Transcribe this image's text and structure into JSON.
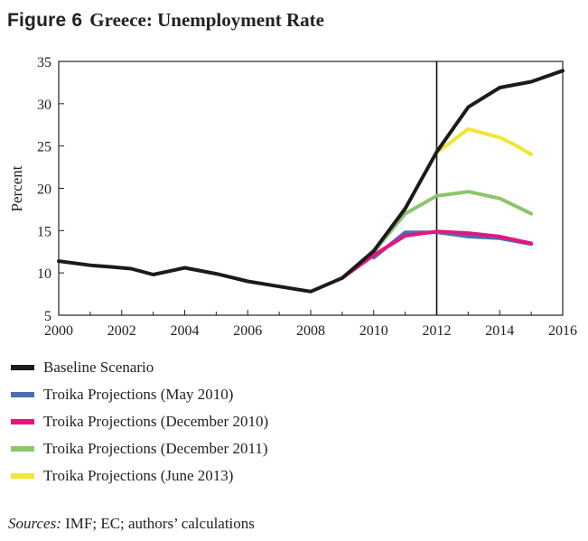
{
  "figure": {
    "label": "Figure 6",
    "title": "Greece: Unemployment Rate"
  },
  "chart_data": {
    "type": "line",
    "title": "Greece: Unemployment Rate",
    "xlabel": "",
    "ylabel": "Percent",
    "xlim": [
      2000,
      2016
    ],
    "ylim": [
      5,
      35
    ],
    "xticks": [
      2000,
      2002,
      2004,
      2006,
      2008,
      2010,
      2012,
      2014,
      2016
    ],
    "yticks": [
      5,
      10,
      15,
      20,
      25,
      30,
      35
    ],
    "vline": 2012,
    "series": [
      {
        "name": "Troika Projections (May 2010)",
        "color": "#4a6fb5",
        "x": [
          2010,
          2011,
          2012,
          2013,
          2014,
          2015
        ],
        "values": [
          11.8,
          14.8,
          14.8,
          14.3,
          14.1,
          13.4
        ]
      },
      {
        "name": "Troika Projections (June 2013)",
        "color": "#f2e534",
        "x": [
          2012,
          2013,
          2014,
          2014.5,
          2015
        ],
        "values": [
          24.2,
          27.0,
          26.0,
          25.1,
          24.0
        ]
      },
      {
        "name": "Troika Projections (December 2011)",
        "color": "#8bc66a",
        "x": [
          2010,
          2011,
          2012,
          2013,
          2014,
          2015
        ],
        "values": [
          12.5,
          17.0,
          19.1,
          19.6,
          18.8,
          17.0
        ]
      },
      {
        "name": "Troika Projections (December 2010)",
        "color": "#e6157e",
        "x": [
          2009,
          2010,
          2011,
          2012,
          2013,
          2014,
          2015
        ],
        "values": [
          9.4,
          12.1,
          14.4,
          14.9,
          14.7,
          14.3,
          13.5
        ]
      },
      {
        "name": "Baseline Scenario",
        "color": "#1b1b1b",
        "x": [
          2000,
          2001,
          2001.7,
          2002.3,
          2003,
          2003.5,
          2004,
          2005,
          2006,
          2007,
          2008,
          2009,
          2010,
          2011,
          2012,
          2013,
          2014,
          2015,
          2016
        ],
        "values": [
          11.4,
          10.9,
          10.7,
          10.5,
          9.8,
          10.2,
          10.6,
          9.9,
          9.0,
          8.4,
          7.8,
          9.4,
          12.6,
          17.6,
          24.3,
          29.6,
          31.9,
          32.6,
          33.9
        ]
      }
    ]
  },
  "legend": {
    "items": [
      {
        "label": "Baseline Scenario",
        "color": "#1b1b1b"
      },
      {
        "label": "Troika Projections (May 2010)",
        "color": "#4a6fb5"
      },
      {
        "label": "Troika Projections (December 2010)",
        "color": "#e6157e"
      },
      {
        "label": "Troika Projections (December 2011)",
        "color": "#8bc66a"
      },
      {
        "label": "Troika Projections (June 2013)",
        "color": "#f2e534"
      }
    ]
  },
  "source": {
    "lead": "Sources:",
    "text": "IMF; EC; authors’ calculations"
  }
}
